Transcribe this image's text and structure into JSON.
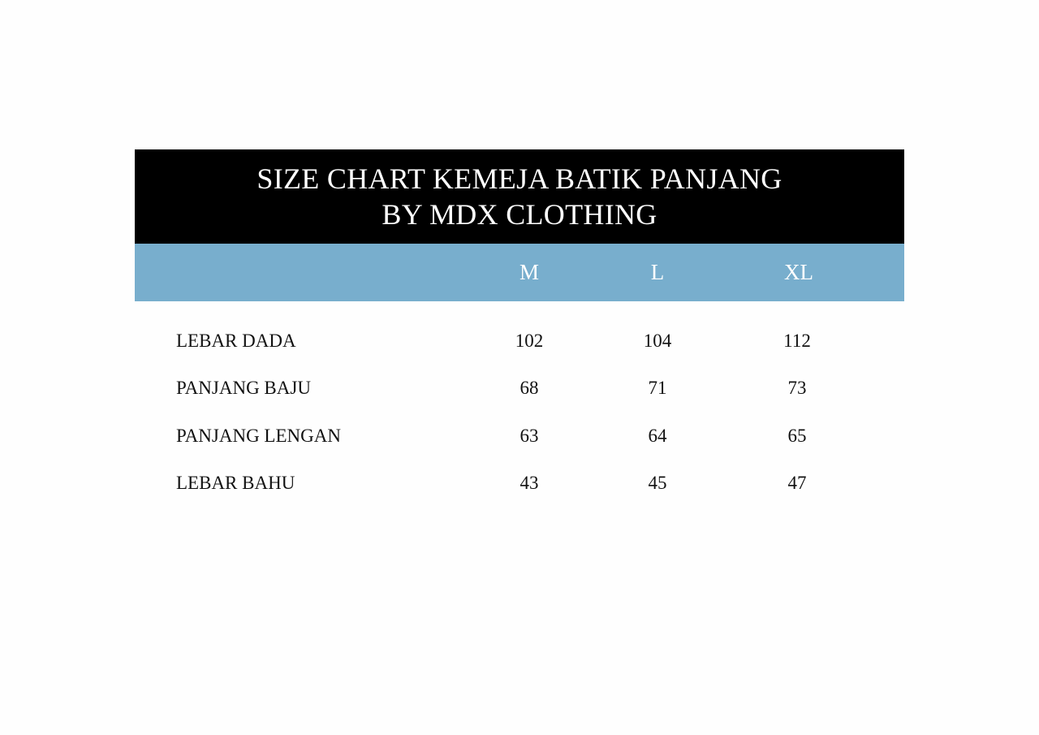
{
  "title": {
    "line1": "SIZE CHART KEMEJA BATIK PANJANG",
    "line2": "BY MDX CLOTHING"
  },
  "colors": {
    "title_band": "#000000",
    "header_band": "#78aecd"
  },
  "sizes": [
    "M",
    "L",
    "XL"
  ],
  "rows": [
    {
      "label": "LEBAR DADA",
      "values": [
        "102",
        "104",
        "112"
      ]
    },
    {
      "label": "PANJANG BAJU",
      "values": [
        "68",
        "71",
        "73"
      ]
    },
    {
      "label": "PANJANG LENGAN",
      "values": [
        "63",
        "64",
        "65"
      ]
    },
    {
      "label": "LEBAR BAHU",
      "values": [
        "43",
        "45",
        "47"
      ]
    }
  ]
}
